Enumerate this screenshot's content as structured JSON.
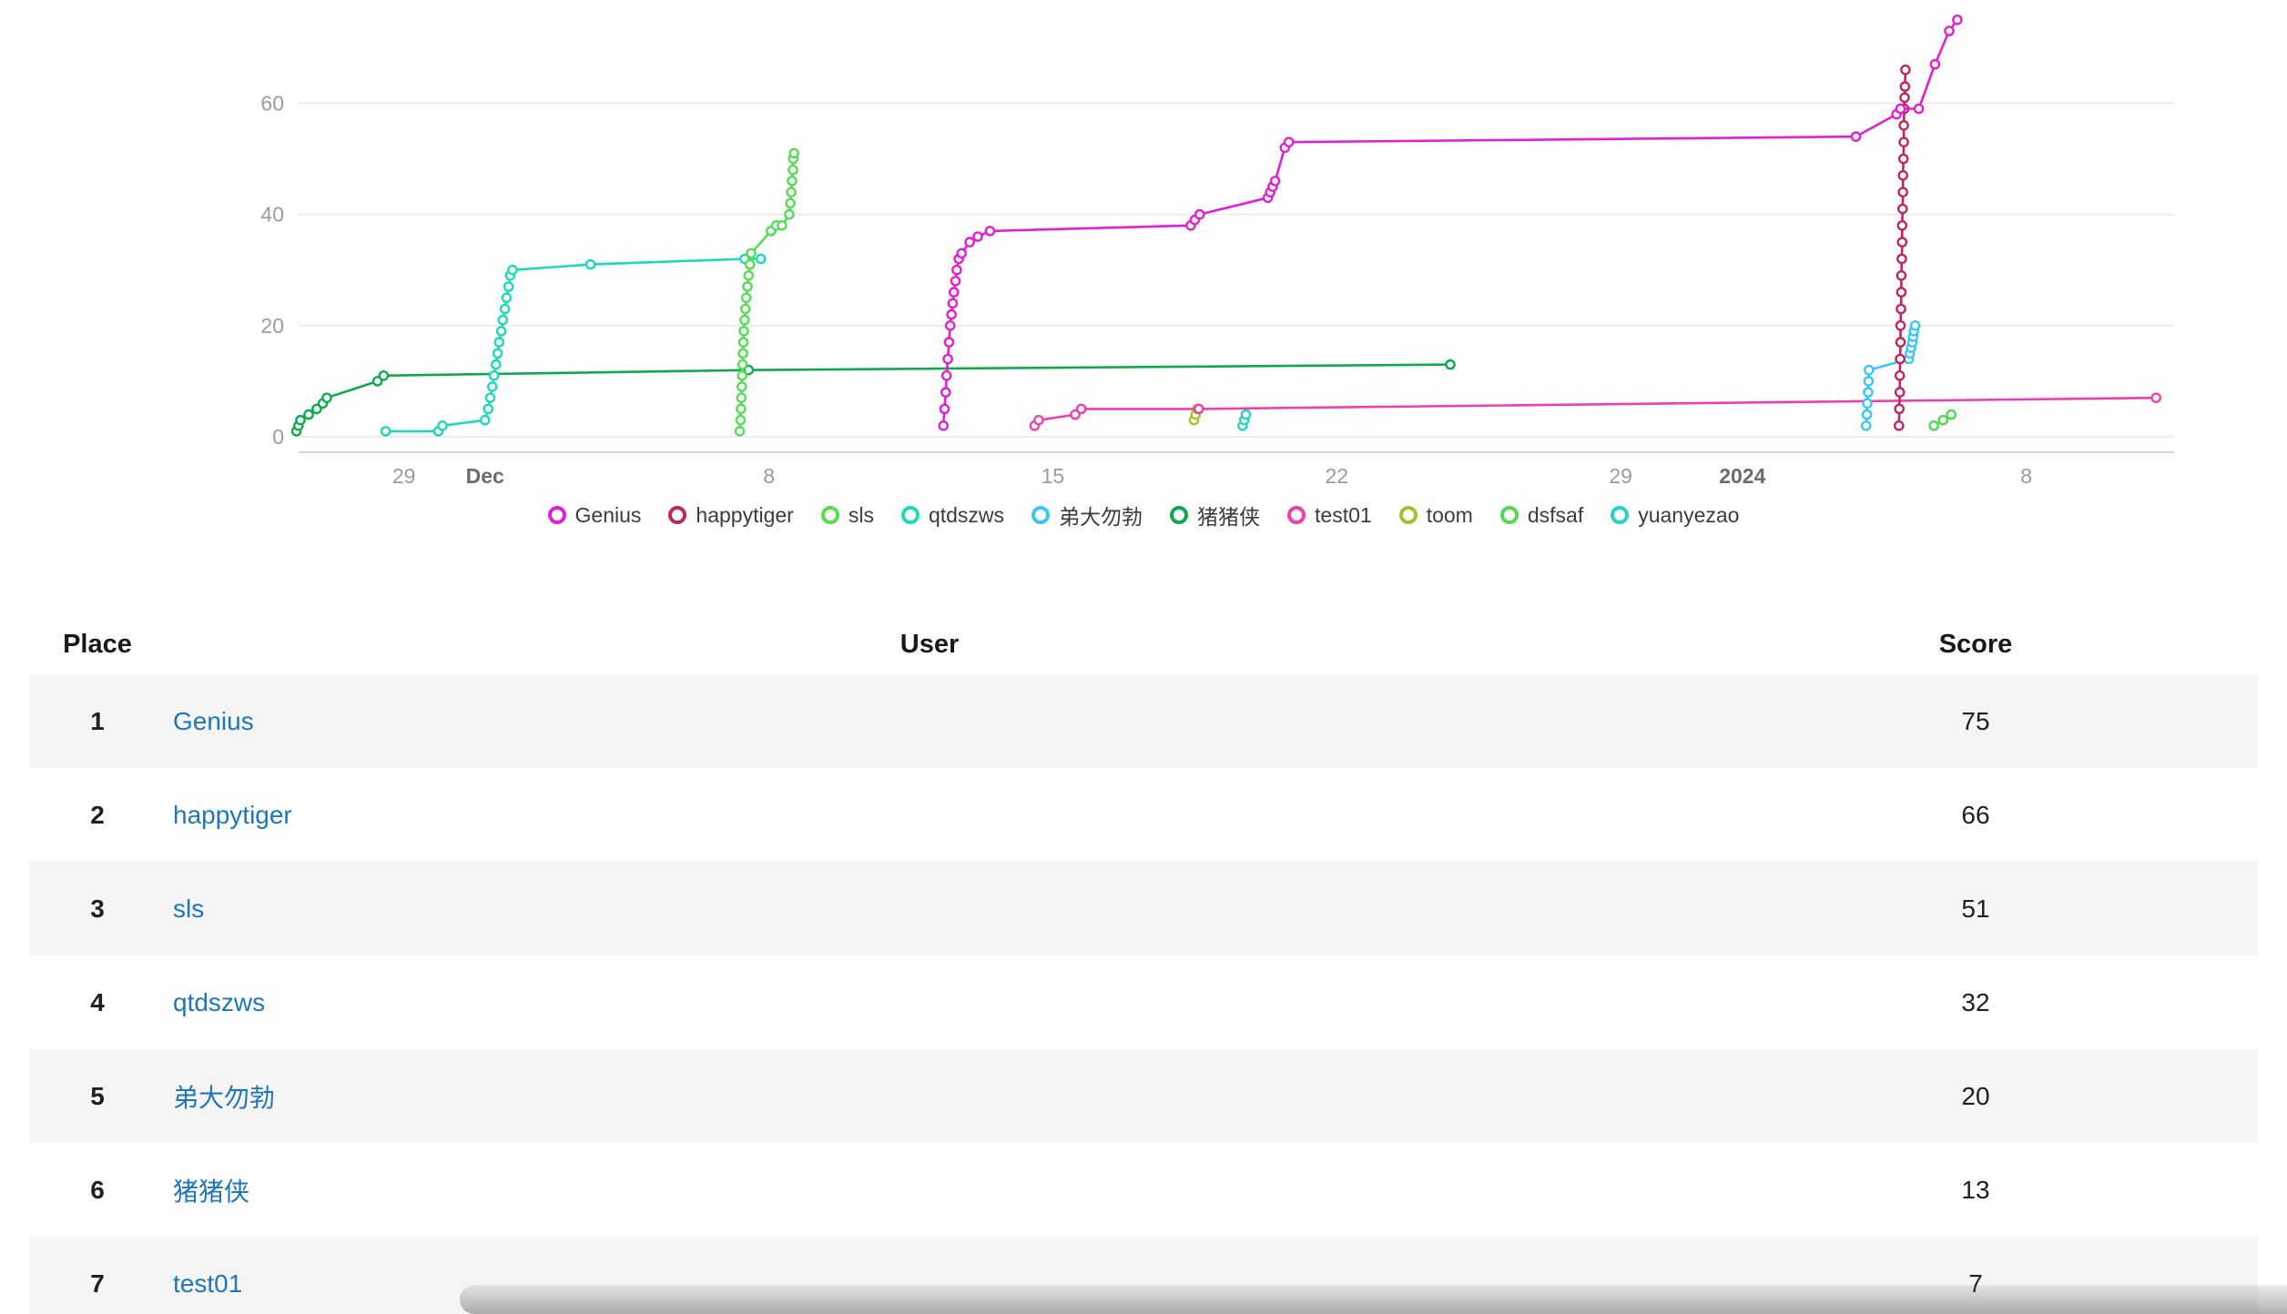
{
  "chart_data": {
    "type": "line",
    "title": "",
    "xlabel": "",
    "ylabel": "",
    "ylim": [
      0,
      78
    ],
    "y_ticks": [
      0,
      20,
      40,
      60
    ],
    "x_unit": "days (0 = first visible date, late Nov; ticks are dates)",
    "x_ticks": [
      {
        "day": 3,
        "label": "29",
        "bold": false
      },
      {
        "day": 5,
        "label": "Dec",
        "bold": true
      },
      {
        "day": 12,
        "label": "8",
        "bold": false
      },
      {
        "day": 19,
        "label": "15",
        "bold": false
      },
      {
        "day": 26,
        "label": "22",
        "bold": false
      },
      {
        "day": 33,
        "label": "29",
        "bold": false
      },
      {
        "day": 36,
        "label": "2024",
        "bold": true
      },
      {
        "day": 43,
        "label": "8",
        "bold": false
      }
    ],
    "grid": "horizontal",
    "legend_position": "bottom",
    "marker": "open-circle",
    "series": [
      {
        "name": "Genius",
        "color": "#e21fd3",
        "final_score": 75,
        "points": [
          [
            16.3,
            2
          ],
          [
            16.33,
            5
          ],
          [
            16.36,
            8
          ],
          [
            16.38,
            11
          ],
          [
            16.41,
            14
          ],
          [
            16.44,
            17
          ],
          [
            16.47,
            20
          ],
          [
            16.5,
            22
          ],
          [
            16.53,
            24
          ],
          [
            16.56,
            26
          ],
          [
            16.6,
            28
          ],
          [
            16.63,
            30
          ],
          [
            16.68,
            32
          ],
          [
            16.75,
            33
          ],
          [
            16.95,
            35
          ],
          [
            17.15,
            36
          ],
          [
            17.45,
            37
          ],
          [
            22.4,
            38
          ],
          [
            22.5,
            39
          ],
          [
            22.62,
            40
          ],
          [
            24.3,
            43
          ],
          [
            24.36,
            44
          ],
          [
            24.42,
            45
          ],
          [
            24.48,
            46
          ],
          [
            24.72,
            52
          ],
          [
            24.82,
            53
          ],
          [
            38.8,
            54
          ],
          [
            39.8,
            58
          ],
          [
            39.9,
            59
          ],
          [
            40.35,
            59
          ],
          [
            40.75,
            67
          ],
          [
            41.1,
            73
          ],
          [
            41.3,
            75
          ]
        ]
      },
      {
        "name": "happytiger",
        "color": "#c2245d",
        "final_score": 66,
        "points": [
          [
            39.86,
            2
          ],
          [
            39.87,
            5
          ],
          [
            39.88,
            8
          ],
          [
            39.88,
            11
          ],
          [
            39.89,
            14
          ],
          [
            39.9,
            17
          ],
          [
            39.9,
            20
          ],
          [
            39.91,
            23
          ],
          [
            39.92,
            26
          ],
          [
            39.92,
            29
          ],
          [
            39.93,
            32
          ],
          [
            39.94,
            35
          ],
          [
            39.94,
            38
          ],
          [
            39.95,
            41
          ],
          [
            39.96,
            44
          ],
          [
            39.96,
            47
          ],
          [
            39.97,
            50
          ],
          [
            39.98,
            53
          ],
          [
            39.98,
            56
          ],
          [
            39.99,
            59
          ],
          [
            40.0,
            61
          ],
          [
            40.01,
            63
          ],
          [
            40.02,
            66
          ]
        ]
      },
      {
        "name": "sls",
        "color": "#55dd55",
        "final_score": 51,
        "points": [
          [
            11.28,
            1
          ],
          [
            11.3,
            3
          ],
          [
            11.31,
            5
          ],
          [
            11.32,
            7
          ],
          [
            11.33,
            9
          ],
          [
            11.34,
            11
          ],
          [
            11.35,
            13
          ],
          [
            11.36,
            15
          ],
          [
            11.37,
            17
          ],
          [
            11.38,
            19
          ],
          [
            11.4,
            21
          ],
          [
            11.42,
            23
          ],
          [
            11.44,
            25
          ],
          [
            11.47,
            27
          ],
          [
            11.5,
            29
          ],
          [
            11.53,
            31
          ],
          [
            11.56,
            33
          ],
          [
            12.05,
            37
          ],
          [
            12.18,
            38
          ],
          [
            12.32,
            38
          ],
          [
            12.5,
            40
          ],
          [
            12.53,
            42
          ],
          [
            12.55,
            44
          ],
          [
            12.57,
            46
          ],
          [
            12.59,
            48
          ],
          [
            12.6,
            50
          ],
          [
            12.62,
            51
          ]
        ]
      },
      {
        "name": "qtdszws",
        "color": "#1ed9b8",
        "final_score": 32,
        "points": [
          [
            2.55,
            1
          ],
          [
            3.85,
            1
          ],
          [
            3.95,
            2
          ],
          [
            5.0,
            3
          ],
          [
            5.08,
            5
          ],
          [
            5.13,
            7
          ],
          [
            5.18,
            9
          ],
          [
            5.22,
            11
          ],
          [
            5.27,
            13
          ],
          [
            5.31,
            15
          ],
          [
            5.35,
            17
          ],
          [
            5.4,
            19
          ],
          [
            5.44,
            21
          ],
          [
            5.49,
            23
          ],
          [
            5.53,
            25
          ],
          [
            5.58,
            27
          ],
          [
            5.62,
            29
          ],
          [
            5.68,
            30
          ],
          [
            7.6,
            31
          ],
          [
            11.4,
            32
          ],
          [
            11.8,
            32
          ]
        ]
      },
      {
        "name": "弟大勿勃",
        "color": "#38c6f4",
        "final_score": 20,
        "points": [
          [
            39.05,
            2
          ],
          [
            39.07,
            4
          ],
          [
            39.08,
            6
          ],
          [
            39.1,
            8
          ],
          [
            39.11,
            10
          ],
          [
            39.12,
            12
          ],
          [
            40.1,
            14
          ],
          [
            40.13,
            15
          ],
          [
            40.16,
            16
          ],
          [
            40.19,
            17
          ],
          [
            40.21,
            18
          ],
          [
            40.23,
            19
          ],
          [
            40.26,
            20
          ]
        ]
      },
      {
        "name": "猪猪侠",
        "color": "#0ea94f",
        "final_score": 13,
        "points": [
          [
            0.35,
            1
          ],
          [
            0.4,
            2
          ],
          [
            0.45,
            3
          ],
          [
            0.65,
            4
          ],
          [
            0.85,
            5
          ],
          [
            1.0,
            6
          ],
          [
            1.1,
            7
          ],
          [
            2.35,
            10
          ],
          [
            2.5,
            11
          ],
          [
            11.5,
            12
          ],
          [
            28.8,
            13
          ]
        ]
      },
      {
        "name": "test01",
        "color": "#ef3eb0",
        "final_score": 7,
        "points": [
          [
            18.55,
            2
          ],
          [
            18.65,
            3
          ],
          [
            19.55,
            4
          ],
          [
            19.7,
            5
          ],
          [
            22.6,
            5
          ],
          [
            46.2,
            7
          ]
        ]
      },
      {
        "name": "toom",
        "color": "#a9bf2c",
        "final_score": 5,
        "points": [
          [
            22.48,
            3
          ],
          [
            22.52,
            4
          ],
          [
            22.56,
            5
          ]
        ]
      },
      {
        "name": "dsfsaf",
        "color": "#4fd94f",
        "final_score": 4,
        "points": [
          [
            40.72,
            2
          ],
          [
            40.95,
            3
          ],
          [
            41.15,
            4
          ]
        ]
      },
      {
        "name": "yuanyezao",
        "color": "#25d4c5",
        "final_score": 4,
        "points": [
          [
            23.68,
            2
          ],
          [
            23.72,
            3
          ],
          [
            23.76,
            4
          ]
        ]
      }
    ]
  },
  "axis_style": {
    "tick_color": "#9b9b9b",
    "bold_tick_color": "#6b6b6b",
    "grid_color": "#ececec",
    "axis_line_color": "#d4d4d4"
  },
  "table": {
    "headers": [
      "Place",
      "User",
      "Score"
    ],
    "link_color": "#1f76b8",
    "rows": [
      {
        "place": "1",
        "user": "Genius",
        "score": "75"
      },
      {
        "place": "2",
        "user": "happytiger",
        "score": "66"
      },
      {
        "place": "3",
        "user": "sls",
        "score": "51"
      },
      {
        "place": "4",
        "user": "qtdszws",
        "score": "32"
      },
      {
        "place": "5",
        "user": "弟大勿勃",
        "score": "20"
      },
      {
        "place": "6",
        "user": "猪猪侠",
        "score": "13"
      },
      {
        "place": "7",
        "user": "test01",
        "score": "7"
      }
    ]
  }
}
